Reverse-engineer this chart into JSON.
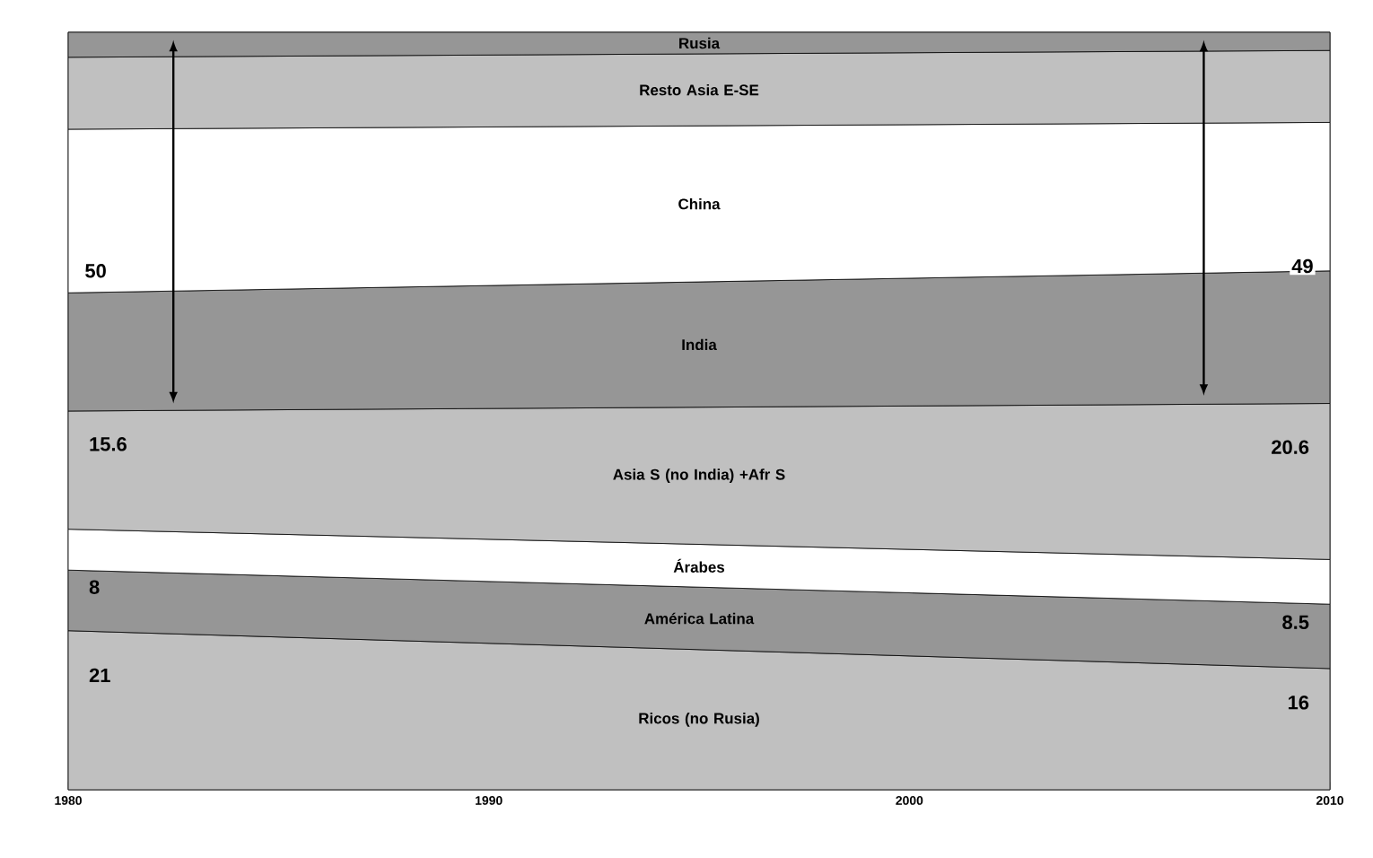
{
  "chart_data": {
    "type": "area",
    "stacked": true,
    "x": [
      1980,
      2010
    ],
    "xlim": [
      1980,
      2010
    ],
    "xticks": [
      1980,
      1990,
      2000,
      2010
    ],
    "tick_labels": "x",
    "grid": false,
    "series": [
      {
        "name": "Ricos (no Rusia)",
        "color": "#c0c0c0",
        "values": [
          21,
          16
        ],
        "value_labels": [
          "21",
          "16"
        ]
      },
      {
        "name": "América Latina",
        "color": "#969696",
        "values": [
          8,
          8.5
        ],
        "value_labels": [
          "8",
          "8.5"
        ]
      },
      {
        "name": "Árabes",
        "color": "#ffffff",
        "values": [
          5.4,
          5.9
        ]
      },
      {
        "name": "Asia S (no India) +Afr S",
        "color": "#c0c0c0",
        "values": [
          15.6,
          20.6
        ],
        "value_labels": [
          "15.6",
          "20.6"
        ]
      },
      {
        "name": "India",
        "color": "#969696",
        "values": [
          15.6,
          17.5
        ]
      },
      {
        "name": "China",
        "color": "#ffffff",
        "values": [
          21.6,
          19.6
        ]
      },
      {
        "name": "Resto Asia E-SE",
        "color": "#c0c0c0",
        "values": [
          9.5,
          9.5
        ]
      },
      {
        "name": "Rusia",
        "color": "#969696",
        "values": [
          3.3,
          2.4
        ]
      }
    ],
    "annotations": [
      "50",
      "49"
    ]
  }
}
